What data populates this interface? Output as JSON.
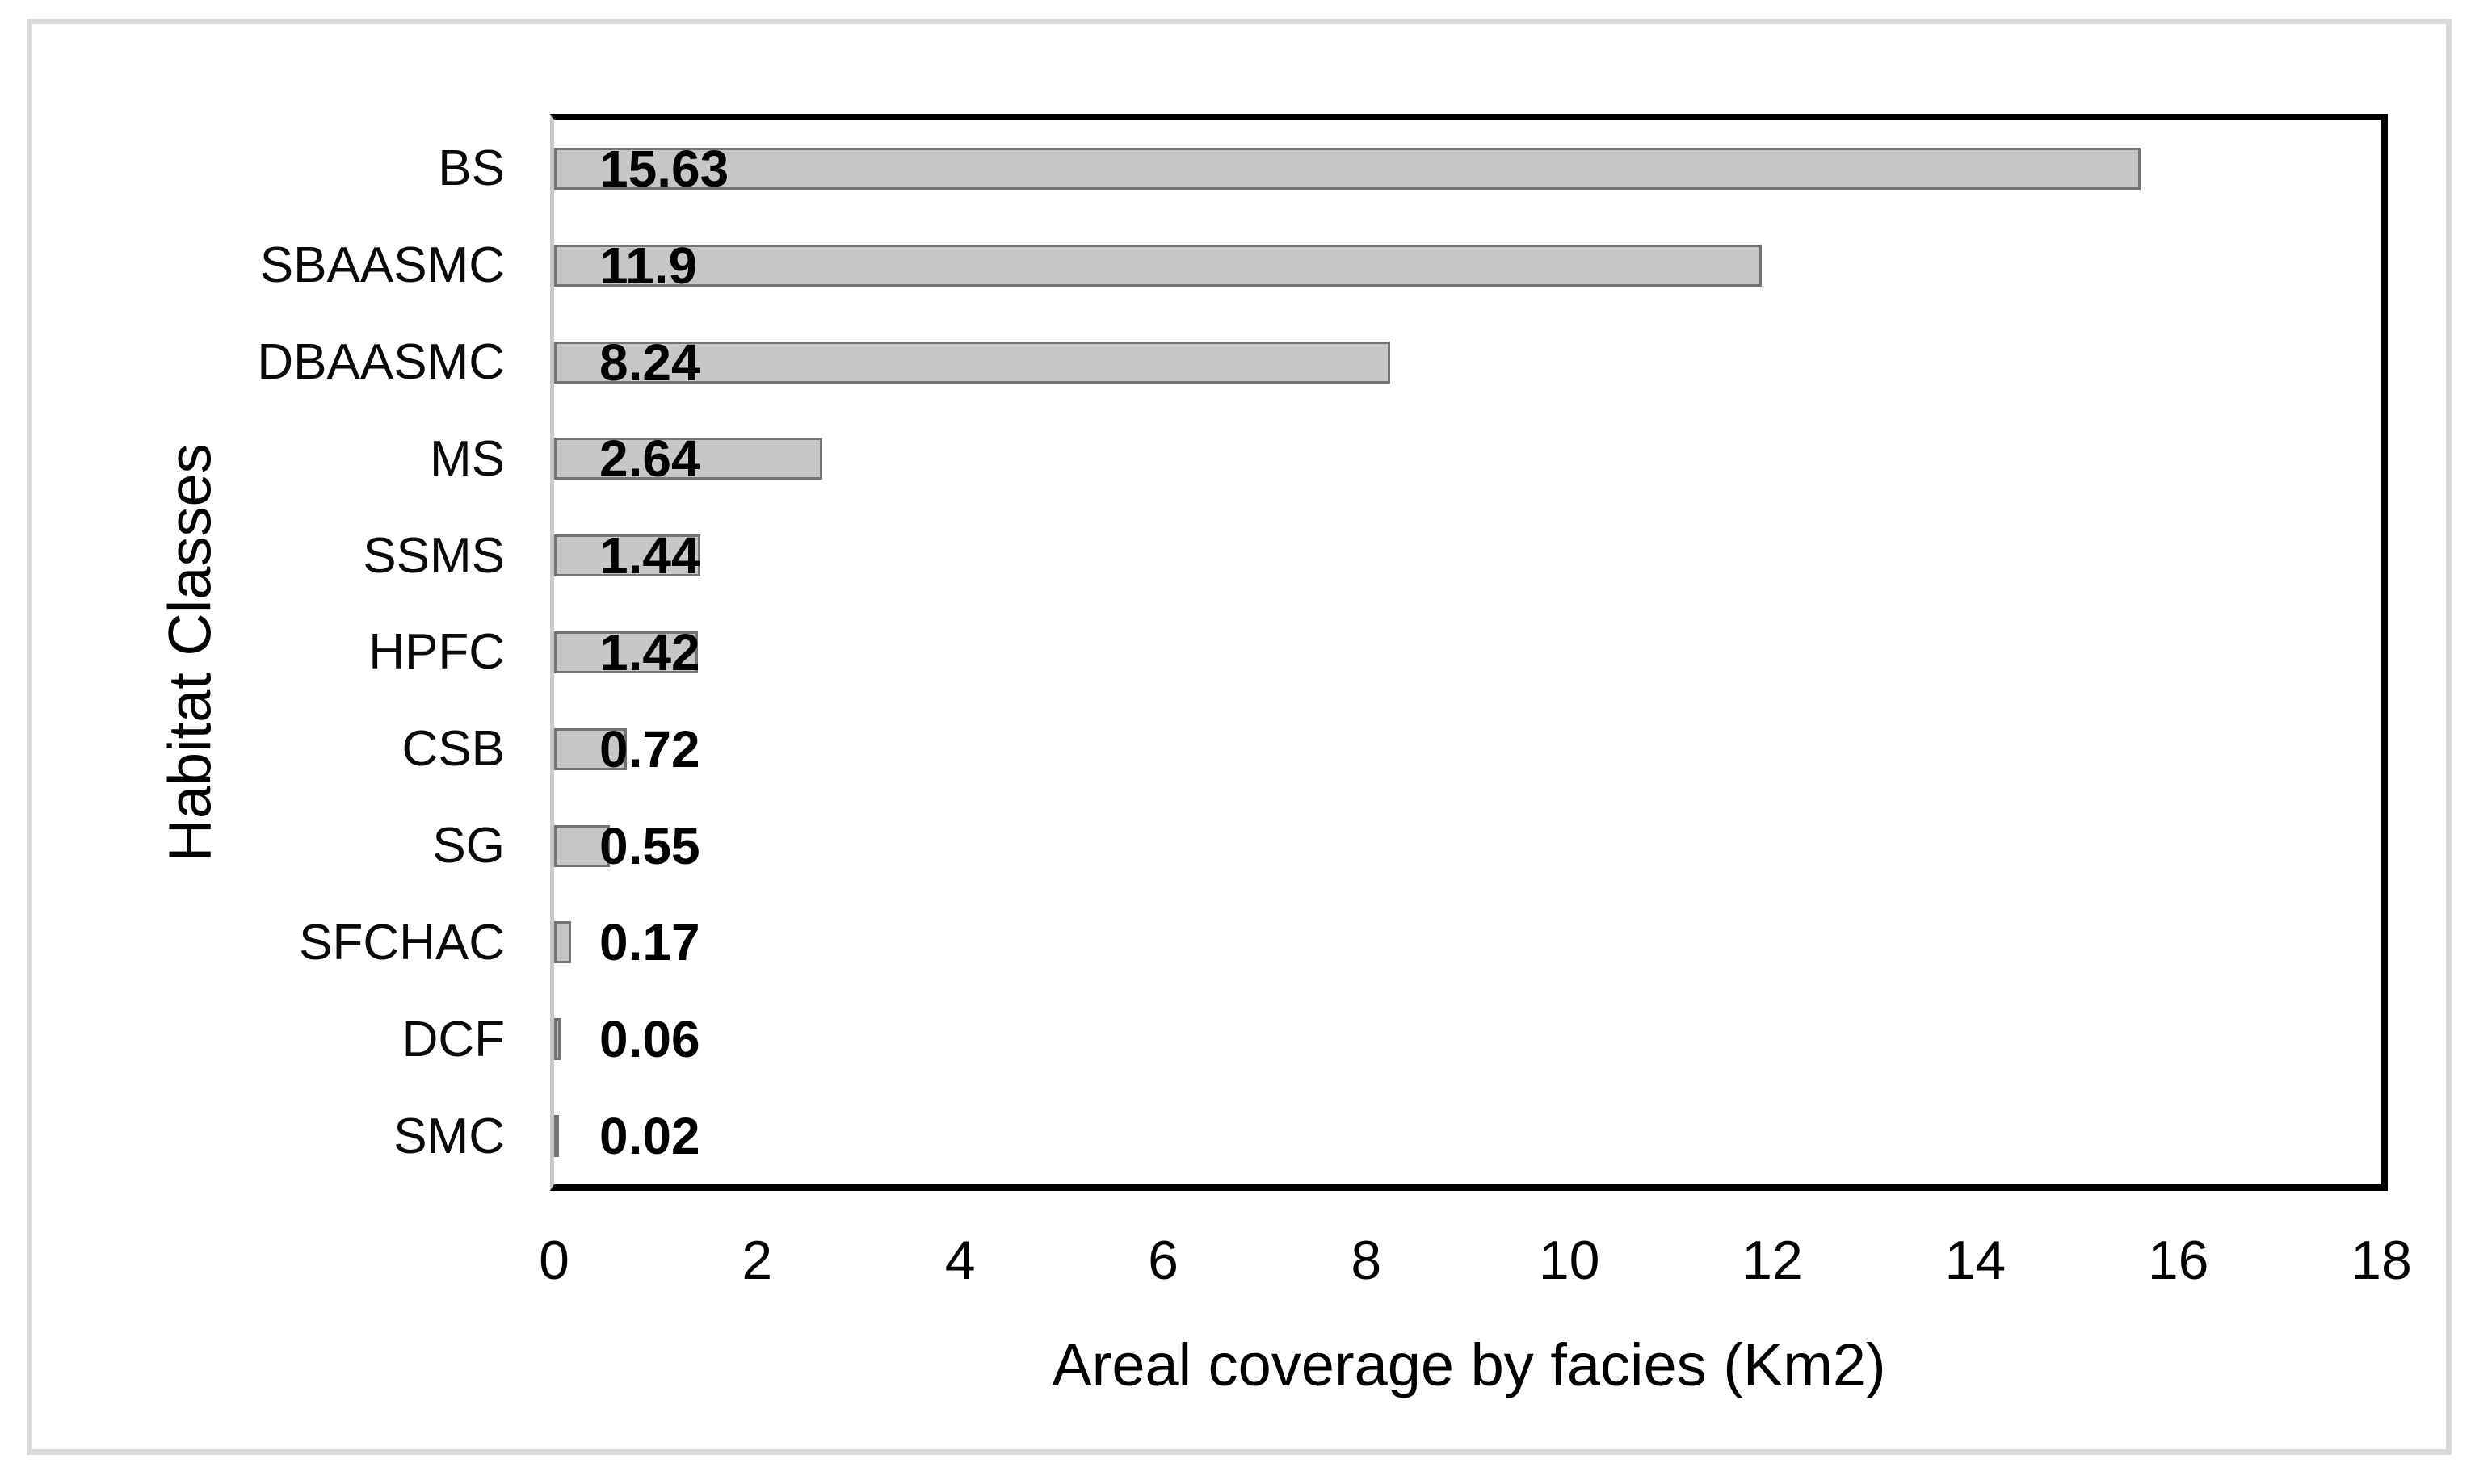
{
  "figure": {
    "background_color": "#ffffff",
    "frame_border_color": "#d9d9d9",
    "plot_border_color": "#000000",
    "axis_line_color": "#c8c8c8"
  },
  "chart_data": {
    "type": "bar",
    "orientation": "horizontal",
    "title": "",
    "xlabel": "Areal coverage by facies (Km2)",
    "ylabel": "Habitat Classes",
    "categories": [
      "BS",
      "SBAASMC",
      "DBAASMC",
      "MS",
      "SSMS",
      "HPFC",
      "CSB",
      "SG",
      "SFCHAC",
      "DCF",
      "SMC"
    ],
    "values": [
      15.63,
      11.9,
      8.24,
      2.64,
      1.44,
      1.42,
      0.72,
      0.55,
      0.17,
      0.06,
      0.02
    ],
    "value_labels": [
      "15.63",
      "11.9",
      "8.24",
      "2.64",
      "1.44",
      "1.42",
      "0.72",
      "0.55",
      "0.17",
      "0.06",
      "0.02"
    ],
    "xlim": [
      0,
      18
    ],
    "x_tick_labels": [
      "0",
      "2",
      "4",
      "6",
      "8",
      "10",
      "12",
      "14",
      "16",
      "18"
    ],
    "x_tick_values": [
      0,
      2,
      4,
      6,
      8,
      10,
      12,
      14,
      16,
      18
    ],
    "grid": false,
    "legend": "none",
    "bar_fill_color": "#c7c7c7",
    "bar_border_color": "#747474",
    "data_label_position": "inside-base"
  }
}
